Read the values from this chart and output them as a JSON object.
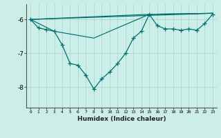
{
  "xlabel": "Humidex (Indice chaleur)",
  "bg_color": "#cceee8",
  "grid_color": "#aad8d0",
  "line_color": "#006e6e",
  "xlim": [
    -0.5,
    23.5
  ],
  "ylim": [
    -8.6,
    -5.55
  ],
  "yticks": [
    -8,
    -7,
    -6
  ],
  "series_main": {
    "x": [
      0,
      1,
      2,
      3,
      4,
      5,
      6,
      7,
      8,
      9,
      10,
      11,
      12,
      13,
      14,
      15,
      16,
      17,
      18,
      19,
      20,
      21,
      22,
      23
    ],
    "y": [
      -6.0,
      -6.25,
      -6.3,
      -6.35,
      -6.75,
      -7.3,
      -7.35,
      -7.65,
      -8.05,
      -7.75,
      -7.55,
      -7.3,
      -7.0,
      -6.55,
      -6.35,
      -5.85,
      -6.18,
      -6.28,
      -6.28,
      -6.32,
      -6.28,
      -6.32,
      -6.12,
      -5.85
    ]
  },
  "series_lines": [
    {
      "x": [
        0,
        23
      ],
      "y": [
        -6.0,
        -5.82
      ]
    },
    {
      "x": [
        0,
        15,
        23
      ],
      "y": [
        -6.0,
        -5.85,
        -5.82
      ]
    },
    {
      "x": [
        0,
        3,
        8,
        15,
        23
      ],
      "y": [
        -6.0,
        -6.35,
        -6.55,
        -5.85,
        -5.82
      ]
    }
  ]
}
